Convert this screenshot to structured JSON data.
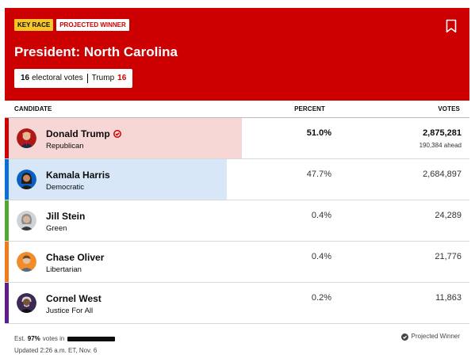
{
  "header": {
    "badge_key_race": "KEY RACE",
    "badge_projected": "PROJECTED WINNER",
    "title": "President: North Carolina",
    "ev_count": "16",
    "ev_label": "electoral votes",
    "ev_winner_name": "Trump",
    "ev_winner_count": "16",
    "bookmark_icon": "bookmark-icon"
  },
  "columns": {
    "candidate": "CANDIDATE",
    "percent": "PERCENT",
    "votes": "VOTES"
  },
  "candidates": [
    {
      "name": "Donald Trump",
      "party": "Republican",
      "percent": "51.0%",
      "share": 0.51,
      "votes": "2,875,281",
      "ahead": "190,384 ahead",
      "winner": true,
      "color": "#cc0000",
      "fill": "#f7d6d6"
    },
    {
      "name": "Kamala Harris",
      "party": "Democratic",
      "percent": "47.7%",
      "share": 0.477,
      "votes": "2,684,897",
      "ahead": "",
      "winner": false,
      "color": "#0a6fd9",
      "fill": "#d7e7f8"
    },
    {
      "name": "Jill Stein",
      "party": "Green",
      "percent": "0.4%",
      "share": 0.004,
      "votes": "24,289",
      "ahead": "",
      "winner": false,
      "color": "#4fa830",
      "fill": "#e1f0da"
    },
    {
      "name": "Chase Oliver",
      "party": "Libertarian",
      "percent": "0.4%",
      "share": 0.004,
      "votes": "21,776",
      "ahead": "",
      "winner": false,
      "color": "#f07b18",
      "fill": "#fde6d3"
    },
    {
      "name": "Cornel West",
      "party": "Justice For All",
      "percent": "0.2%",
      "share": 0.002,
      "votes": "11,863",
      "ahead": "",
      "winner": false,
      "color": "#5b1e8c",
      "fill": "#e7dcf0"
    }
  ],
  "footer": {
    "est_prefix": "Est.",
    "est_pct": "97%",
    "est_suffix": "votes in",
    "updated": "Updated 2:26 a.m. ET, Nov. 6",
    "projected_label": "Projected Winner"
  },
  "colors": {
    "header_red": "#cc0000",
    "key_yellow": "#f7c72a"
  }
}
